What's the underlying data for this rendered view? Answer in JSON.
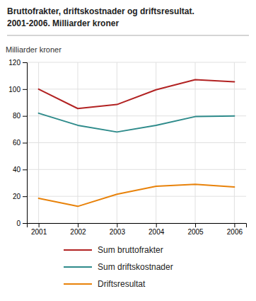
{
  "chart_data": {
    "type": "line",
    "title": "Bruttofrakter, driftskostnader og driftsresultat.",
    "subtitle": "2001-2006. Milliarder kroner",
    "y_label": "Milliarder kroner",
    "x": [
      2001,
      2002,
      2003,
      2004,
      2005,
      2006
    ],
    "series": [
      {
        "name": "Sum bruttofrakter",
        "color": "#b22222",
        "values": [
          100,
          85.5,
          88.5,
          99.5,
          107,
          105.5
        ]
      },
      {
        "name": "Sum driftskostnader",
        "color": "#2e8b8b",
        "values": [
          82,
          73,
          68,
          73,
          79.5,
          80
        ]
      },
      {
        "name": "Driftsresultat",
        "color": "#e8820a",
        "values": [
          18.5,
          12.5,
          21.5,
          27.5,
          29,
          27
        ]
      }
    ],
    "xlim": [
      2000.7,
      2006.3
    ],
    "xticks": [
      2001,
      2002,
      2003,
      2004,
      2005,
      2006
    ],
    "ylim": [
      0,
      120
    ],
    "yticks": [
      0,
      20,
      40,
      60,
      80,
      100,
      120
    ],
    "grid": true,
    "legend": "bottom"
  }
}
